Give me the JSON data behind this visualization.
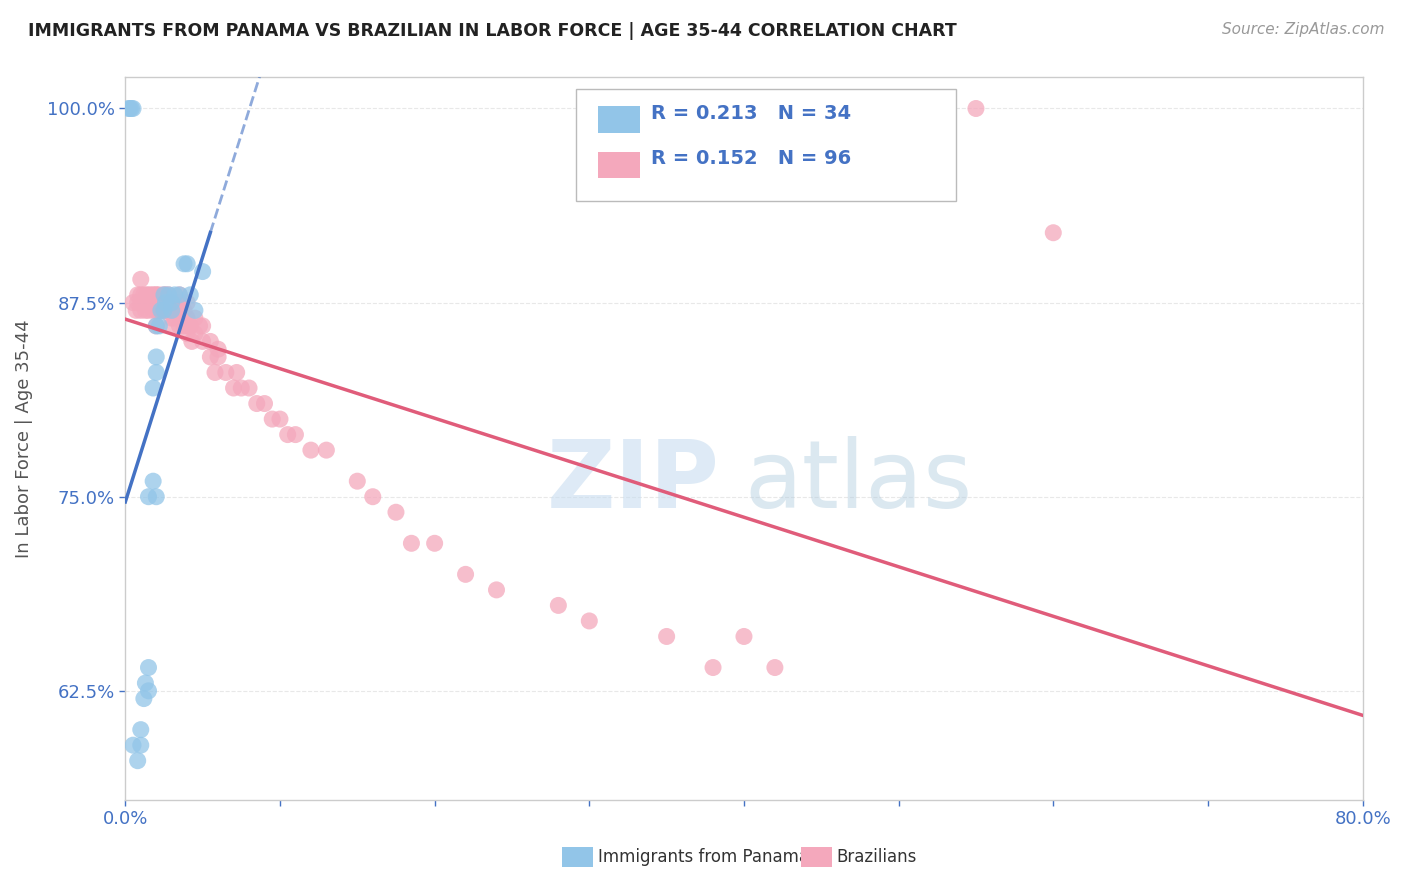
{
  "title": "IMMIGRANTS FROM PANAMA VS BRAZILIAN IN LABOR FORCE | AGE 35-44 CORRELATION CHART",
  "source": "Source: ZipAtlas.com",
  "ylabel": "In Labor Force | Age 35-44",
  "xmin": 0.0,
  "xmax": 0.8,
  "ymin": 0.555,
  "ymax": 1.02,
  "yticks": [
    0.625,
    0.75,
    0.875,
    1.0
  ],
  "ytick_labels": [
    "62.5%",
    "75.0%",
    "87.5%",
    "100.0%"
  ],
  "xticks": [
    0.0,
    0.1,
    0.2,
    0.3,
    0.4,
    0.5,
    0.6,
    0.7,
    0.8
  ],
  "xtick_labels": [
    "0.0%",
    "",
    "",
    "",
    "",
    "",
    "",
    "",
    "80.0%"
  ],
  "panama_color": "#92c5e8",
  "brazil_color": "#f4a8bc",
  "trend_panama_color": "#4472c4",
  "trend_brazil_color": "#e05c7a",
  "legend_R_panama": "0.213",
  "legend_N_panama": "34",
  "legend_R_brazil": "0.152",
  "legend_N_brazil": "96",
  "panama_x": [
    0.005,
    0.008,
    0.01,
    0.01,
    0.012,
    0.013,
    0.015,
    0.015,
    0.015,
    0.018,
    0.018,
    0.02,
    0.02,
    0.02,
    0.02,
    0.022,
    0.023,
    0.025,
    0.025,
    0.026,
    0.028,
    0.03,
    0.03,
    0.032,
    0.035,
    0.038,
    0.04,
    0.042,
    0.045,
    0.05,
    0.002,
    0.003,
    0.004,
    0.005
  ],
  "panama_y": [
    0.59,
    0.58,
    0.59,
    0.6,
    0.62,
    0.63,
    0.625,
    0.64,
    0.75,
    0.76,
    0.82,
    0.75,
    0.83,
    0.84,
    0.86,
    0.86,
    0.87,
    0.87,
    0.88,
    0.875,
    0.88,
    0.87,
    0.875,
    0.88,
    0.88,
    0.9,
    0.9,
    0.88,
    0.87,
    0.895,
    1.0,
    1.0,
    1.0,
    1.0
  ],
  "brazil_x": [
    0.005,
    0.007,
    0.008,
    0.008,
    0.01,
    0.01,
    0.01,
    0.01,
    0.012,
    0.012,
    0.013,
    0.013,
    0.014,
    0.015,
    0.015,
    0.015,
    0.016,
    0.017,
    0.018,
    0.018,
    0.018,
    0.019,
    0.02,
    0.02,
    0.02,
    0.02,
    0.02,
    0.02,
    0.022,
    0.022,
    0.023,
    0.025,
    0.025,
    0.025,
    0.025,
    0.026,
    0.027,
    0.028,
    0.028,
    0.03,
    0.03,
    0.03,
    0.03,
    0.03,
    0.032,
    0.033,
    0.035,
    0.035,
    0.035,
    0.035,
    0.038,
    0.038,
    0.04,
    0.04,
    0.04,
    0.04,
    0.042,
    0.043,
    0.045,
    0.045,
    0.048,
    0.05,
    0.05,
    0.055,
    0.055,
    0.058,
    0.06,
    0.06,
    0.065,
    0.07,
    0.072,
    0.075,
    0.08,
    0.085,
    0.09,
    0.095,
    0.1,
    0.105,
    0.11,
    0.12,
    0.13,
    0.15,
    0.16,
    0.175,
    0.185,
    0.2,
    0.22,
    0.24,
    0.28,
    0.3,
    0.35,
    0.38,
    0.4,
    0.42,
    0.55,
    0.6
  ],
  "brazil_y": [
    0.875,
    0.87,
    0.88,
    0.875,
    0.87,
    0.875,
    0.88,
    0.89,
    0.875,
    0.88,
    0.87,
    0.875,
    0.88,
    0.875,
    0.88,
    0.87,
    0.875,
    0.88,
    0.875,
    0.88,
    0.87,
    0.875,
    0.88,
    0.87,
    0.875,
    0.88,
    0.86,
    0.875,
    0.87,
    0.88,
    0.875,
    0.87,
    0.88,
    0.87,
    0.875,
    0.88,
    0.875,
    0.87,
    0.88,
    0.875,
    0.87,
    0.865,
    0.86,
    0.875,
    0.865,
    0.87,
    0.875,
    0.86,
    0.87,
    0.88,
    0.86,
    0.87,
    0.86,
    0.865,
    0.875,
    0.855,
    0.86,
    0.85,
    0.865,
    0.855,
    0.86,
    0.85,
    0.86,
    0.84,
    0.85,
    0.83,
    0.845,
    0.84,
    0.83,
    0.82,
    0.83,
    0.82,
    0.82,
    0.81,
    0.81,
    0.8,
    0.8,
    0.79,
    0.79,
    0.78,
    0.78,
    0.76,
    0.75,
    0.74,
    0.72,
    0.72,
    0.7,
    0.69,
    0.68,
    0.67,
    0.66,
    0.64,
    0.66,
    0.64,
    1.0,
    0.92
  ],
  "watermark_zip": "ZIP",
  "watermark_atlas": "atlas",
  "bg_color": "#ffffff",
  "grid_color": "#e8e8e8",
  "axis_color": "#cccccc",
  "tick_color": "#4472c4",
  "title_color": "#222222",
  "ylabel_color": "#555555"
}
